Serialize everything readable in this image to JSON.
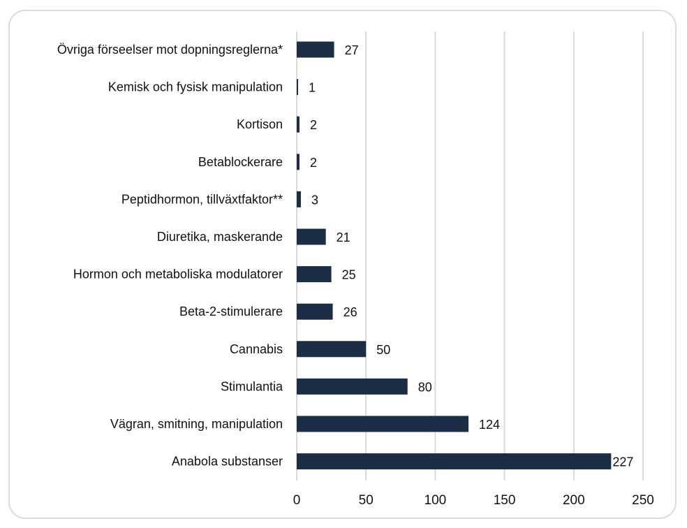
{
  "chart_data": {
    "type": "bar",
    "orientation": "horizontal",
    "title": "",
    "xlabel": "",
    "ylabel": "",
    "xlim": [
      0,
      250
    ],
    "xticks": [
      0,
      50,
      100,
      150,
      200,
      250
    ],
    "grid": true,
    "legend": "none",
    "bar_color": "#1c2e45",
    "grid_color": "#d9d9d9",
    "categories": [
      "Övriga förseelser mot dopningsreglerna*",
      "Kemisk och fysisk manipulation",
      "Kortison",
      "Betablockerare",
      "Peptidhormon, tillväxtfaktor**",
      "Diuretika, maskerande",
      "Hormon och metaboliska modulatorer",
      "Beta-2-stimulerare",
      "Cannabis",
      "Stimulantia",
      "Vägran, smitning, manipulation",
      "Anabola substanser"
    ],
    "values": [
      27,
      1,
      2,
      2,
      3,
      21,
      25,
      26,
      50,
      80,
      124,
      227
    ]
  }
}
